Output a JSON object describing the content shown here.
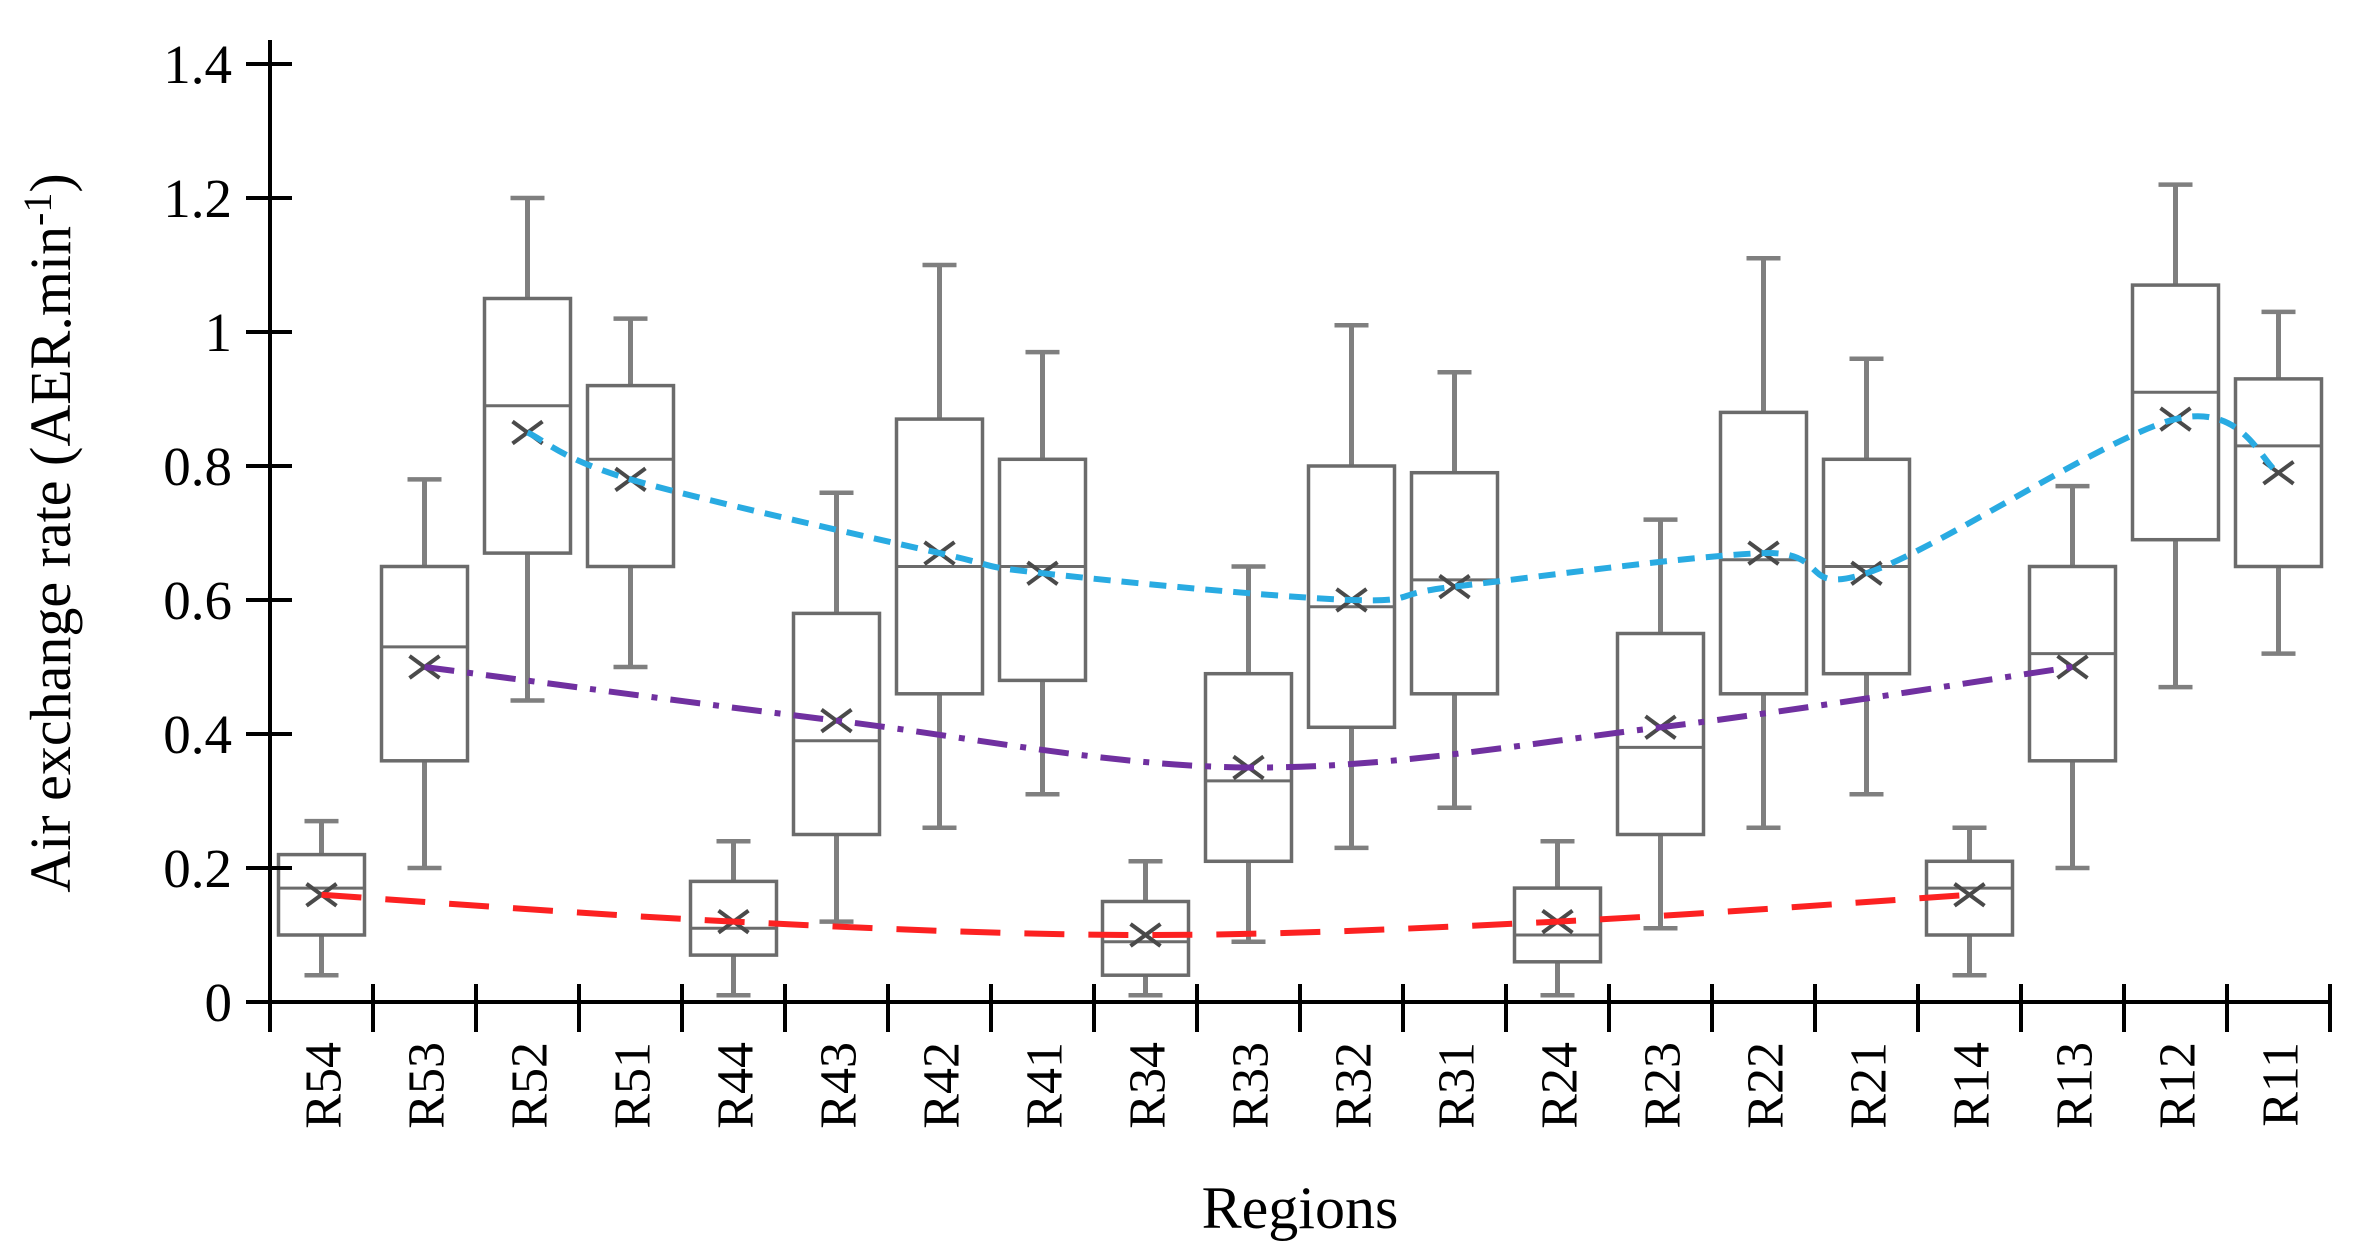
{
  "chart_data": {
    "type": "boxplot",
    "title": "",
    "xlabel": "Regions",
    "ylabel": {
      "base": "Air exchange rate (AER.min",
      "superscript": "-1",
      "suffix": ")"
    },
    "ylim": [
      0,
      1.4
    ],
    "ytick_values": [
      0,
      0.2,
      0.4,
      0.6,
      0.8,
      1,
      1.2,
      1.4
    ],
    "ytick_labels": [
      "0",
      "0.2",
      "0.4",
      "0.6",
      "0.8",
      "1",
      "1.2",
      "1.4"
    ],
    "grid": "off",
    "legend": "none",
    "categories": [
      "R54",
      "R53",
      "R52",
      "R51",
      "R44",
      "R43",
      "R42",
      "R41",
      "R34",
      "R33",
      "R32",
      "R31",
      "R24",
      "R23",
      "R22",
      "R21",
      "R14",
      "R13",
      "R12",
      "R11"
    ],
    "boxes": [
      {
        "label": "R54",
        "whisker_low": 0.04,
        "q1": 0.1,
        "median": 0.17,
        "q3": 0.22,
        "whisker_high": 0.27,
        "mean": 0.16
      },
      {
        "label": "R53",
        "whisker_low": 0.2,
        "q1": 0.36,
        "median": 0.53,
        "q3": 0.65,
        "whisker_high": 0.78,
        "mean": 0.5
      },
      {
        "label": "R52",
        "whisker_low": 0.45,
        "q1": 0.67,
        "median": 0.89,
        "q3": 1.05,
        "whisker_high": 1.2,
        "mean": 0.85
      },
      {
        "label": "R51",
        "whisker_low": 0.5,
        "q1": 0.65,
        "median": 0.81,
        "q3": 0.92,
        "whisker_high": 1.02,
        "mean": 0.78
      },
      {
        "label": "R44",
        "whisker_low": 0.01,
        "q1": 0.07,
        "median": 0.11,
        "q3": 0.18,
        "whisker_high": 0.24,
        "mean": 0.12
      },
      {
        "label": "R43",
        "whisker_low": 0.12,
        "q1": 0.25,
        "median": 0.39,
        "q3": 0.58,
        "whisker_high": 0.76,
        "mean": 0.42
      },
      {
        "label": "R42",
        "whisker_low": 0.26,
        "q1": 0.46,
        "median": 0.65,
        "q3": 0.87,
        "whisker_high": 1.1,
        "mean": 0.67
      },
      {
        "label": "R41",
        "whisker_low": 0.31,
        "q1": 0.48,
        "median": 0.65,
        "q3": 0.81,
        "whisker_high": 0.97,
        "mean": 0.64
      },
      {
        "label": "R34",
        "whisker_low": 0.01,
        "q1": 0.04,
        "median": 0.09,
        "q3": 0.15,
        "whisker_high": 0.21,
        "mean": 0.1
      },
      {
        "label": "R33",
        "whisker_low": 0.09,
        "q1": 0.21,
        "median": 0.33,
        "q3": 0.49,
        "whisker_high": 0.65,
        "mean": 0.35
      },
      {
        "label": "R32",
        "whisker_low": 0.23,
        "q1": 0.41,
        "median": 0.59,
        "q3": 0.8,
        "whisker_high": 1.01,
        "mean": 0.6
      },
      {
        "label": "R31",
        "whisker_low": 0.29,
        "q1": 0.46,
        "median": 0.63,
        "q3": 0.79,
        "whisker_high": 0.94,
        "mean": 0.62
      },
      {
        "label": "R24",
        "whisker_low": 0.01,
        "q1": 0.06,
        "median": 0.1,
        "q3": 0.17,
        "whisker_high": 0.24,
        "mean": 0.12
      },
      {
        "label": "R23",
        "whisker_low": 0.11,
        "q1": 0.25,
        "median": 0.38,
        "q3": 0.55,
        "whisker_high": 0.72,
        "mean": 0.41
      },
      {
        "label": "R22",
        "whisker_low": 0.26,
        "q1": 0.46,
        "median": 0.66,
        "q3": 0.88,
        "whisker_high": 1.11,
        "mean": 0.67
      },
      {
        "label": "R21",
        "whisker_low": 0.31,
        "q1": 0.49,
        "median": 0.65,
        "q3": 0.81,
        "whisker_high": 0.96,
        "mean": 0.64
      },
      {
        "label": "R14",
        "whisker_low": 0.04,
        "q1": 0.1,
        "median": 0.17,
        "q3": 0.21,
        "whisker_high": 0.26,
        "mean": 0.16
      },
      {
        "label": "R13",
        "whisker_low": 0.2,
        "q1": 0.36,
        "median": 0.52,
        "q3": 0.65,
        "whisker_high": 0.77,
        "mean": 0.5
      },
      {
        "label": "R12",
        "whisker_low": 0.47,
        "q1": 0.69,
        "median": 0.91,
        "q3": 1.07,
        "whisker_high": 1.22,
        "mean": 0.87
      },
      {
        "label": "R11",
        "whisker_low": 0.52,
        "q1": 0.65,
        "median": 0.83,
        "q3": 0.93,
        "whisker_high": 1.03,
        "mean": 0.79
      }
    ],
    "trend_lines": [
      {
        "name": "floors-1-2-3-rooms-mean-trend",
        "color": "#29abe2",
        "dash": "dashed",
        "points": [
          {
            "category": "R52",
            "value": 0.85
          },
          {
            "category": "R51",
            "value": 0.78
          },
          {
            "category": "R42",
            "value": 0.67
          },
          {
            "category": "R41",
            "value": 0.64
          },
          {
            "category": "R32",
            "value": 0.6
          },
          {
            "category": "R31",
            "value": 0.62
          },
          {
            "category": "R22",
            "value": 0.67
          },
          {
            "category": "R21",
            "value": 0.64
          },
          {
            "category": "R12",
            "value": 0.87
          },
          {
            "category": "R11",
            "value": 0.79
          }
        ]
      },
      {
        "name": "room-3-series-mean-trend",
        "color": "#7030a0",
        "dash": "dash-dot",
        "points": [
          {
            "category": "R53",
            "value": 0.5
          },
          {
            "category": "R43",
            "value": 0.42
          },
          {
            "category": "R33",
            "value": 0.35
          },
          {
            "category": "R23",
            "value": 0.41
          },
          {
            "category": "R13",
            "value": 0.5
          }
        ]
      },
      {
        "name": "room-4-series-mean-trend",
        "color": "#fc2121",
        "dash": "long-dash",
        "points": [
          {
            "category": "R54",
            "value": 0.16
          },
          {
            "category": "R44",
            "value": 0.12
          },
          {
            "category": "R34",
            "value": 0.1
          },
          {
            "category": "R24",
            "value": 0.12
          },
          {
            "category": "R14",
            "value": 0.16
          }
        ]
      }
    ],
    "styles": {
      "background": "#ffffff",
      "axis_color": "#000000",
      "box_stroke": "#6b6b6b",
      "box_fill": "#ffffff",
      "whisker_stroke": "#7f7f7f",
      "median_stroke": "#6b6b6b",
      "mean_marker_color": "#4a4a4a"
    }
  }
}
